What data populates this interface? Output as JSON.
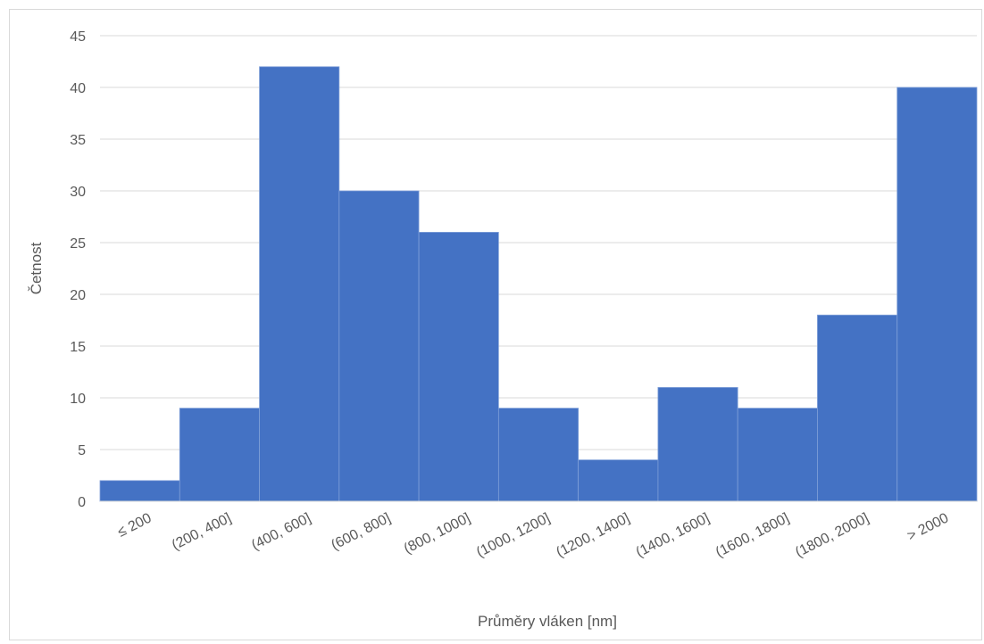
{
  "chart_data": {
    "type": "bar",
    "categories": [
      "≤ 200",
      "(200, 400]",
      "(400, 600]",
      "(600, 800]",
      "(800, 1000]",
      "(1000, 1200]",
      "(1200, 1400]",
      "(1400, 1600]",
      "(1600, 1800]",
      "(1800, 2000]",
      "> 2000"
    ],
    "values": [
      2,
      9,
      42,
      30,
      26,
      9,
      4,
      11,
      9,
      18,
      40
    ],
    "title": "",
    "xlabel": "Průměry vláken [nm]",
    "ylabel": "Četnost",
    "ylim": [
      0,
      45
    ],
    "yticks": [
      0,
      5,
      10,
      15,
      20,
      25,
      30,
      35,
      40,
      45
    ],
    "grid": true,
    "legend": "none",
    "bar_color": "#4472C4",
    "bar_gap": 0
  }
}
